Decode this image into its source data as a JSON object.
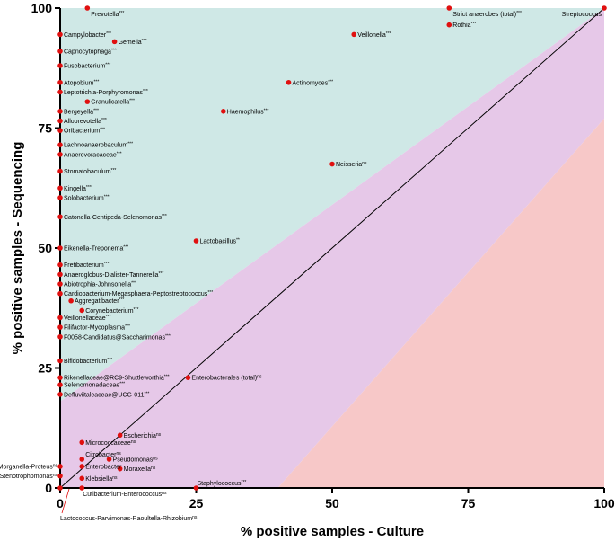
{
  "chart_data": {
    "type": "scatter",
    "xlabel": "% positive samples - Culture",
    "ylabel": "% positive samples - Sequencing",
    "xlim": [
      0,
      100
    ],
    "ylim": [
      0,
      100
    ],
    "xticks": [
      0,
      25,
      50,
      75,
      100
    ],
    "yticks": [
      0,
      25,
      50,
      75,
      100
    ],
    "grid": false,
    "diagonal_line": true,
    "region_colors": {
      "upper": "#cfe8e6",
      "middle": "#e6c8e8",
      "lower": "#f7c8c8"
    },
    "point_color": "#e01010",
    "points": [
      {
        "label": "Prevotella",
        "sig": "***",
        "x": 5,
        "y": 100
      },
      {
        "label": "Strict anaerobes (total)",
        "sig": "***",
        "x": 71.5,
        "y": 100
      },
      {
        "label": "Streptococcus",
        "sig": "",
        "x": 100,
        "y": 100
      },
      {
        "label": "Campylobacter",
        "sig": "***",
        "x": 0,
        "y": 94.5
      },
      {
        "label": "Gemella",
        "sig": "***",
        "x": 10,
        "y": 93
      },
      {
        "label": "Veillonella",
        "sig": "***",
        "x": 54,
        "y": 94.5
      },
      {
        "label": "Rothia",
        "sig": "***",
        "x": 71.5,
        "y": 96.5
      },
      {
        "label": "Capnocytophaga",
        "sig": "***",
        "x": 0,
        "y": 91
      },
      {
        "label": "Fusobacterium",
        "sig": "***",
        "x": 0,
        "y": 88
      },
      {
        "label": "Atopobium",
        "sig": "***",
        "x": 0,
        "y": 84.5
      },
      {
        "label": "Actinomyces",
        "sig": "***",
        "x": 42,
        "y": 84.5
      },
      {
        "label": "Leptotrichia-Porphyromonas",
        "sig": "***",
        "x": 0,
        "y": 82.5
      },
      {
        "label": "Granulicatella",
        "sig": "***",
        "x": 5,
        "y": 80.5
      },
      {
        "label": "Bergeyella",
        "sig": "***",
        "x": 0,
        "y": 78.5
      },
      {
        "label": "Haemophilus",
        "sig": "***",
        "x": 30,
        "y": 78.5
      },
      {
        "label": "Alloprevotella",
        "sig": "***",
        "x": 0,
        "y": 76.5
      },
      {
        "label": "Oribacterium",
        "sig": "***",
        "x": 0,
        "y": 74.5
      },
      {
        "label": "Lachnoanaerobaculum",
        "sig": "***",
        "x": 0,
        "y": 71.5
      },
      {
        "label": "Anaerovoracaceae",
        "sig": "***",
        "x": 0,
        "y": 69.5
      },
      {
        "label": "Neisseria",
        "sig": "ns",
        "x": 50,
        "y": 67.5
      },
      {
        "label": "Stomatobaculum",
        "sig": "***",
        "x": 0,
        "y": 66
      },
      {
        "label": "Kingella",
        "sig": "***",
        "x": 0,
        "y": 62.5
      },
      {
        "label": "Solobacterium",
        "sig": "***",
        "x": 0,
        "y": 60.5
      },
      {
        "label": "Catonella-Centipeda-Selenomonas",
        "sig": "***",
        "x": 0,
        "y": 56.5
      },
      {
        "label": "Lactobacillus",
        "sig": "**",
        "x": 25,
        "y": 51.5
      },
      {
        "label": "Eikenella-Treponema",
        "sig": "***",
        "x": 0,
        "y": 50
      },
      {
        "label": "Fretibacterium",
        "sig": "***",
        "x": 0,
        "y": 46.5
      },
      {
        "label": "Anaeroglobus-Dialister-Tannerella",
        "sig": "***",
        "x": 0,
        "y": 44.5
      },
      {
        "label": "Abiotrophia-Johnsonella",
        "sig": "***",
        "x": 0,
        "y": 42.5
      },
      {
        "label": "Cardiobacterium-Megasphaera-Peptostreptococcus",
        "sig": "***",
        "x": 0,
        "y": 40.5
      },
      {
        "label": "Aggregatibacter",
        "sig": "***",
        "x": 2,
        "y": 39
      },
      {
        "label": "Corynebacterium",
        "sig": "***",
        "x": 4,
        "y": 37
      },
      {
        "label": "Veillonellaceae",
        "sig": "***",
        "x": 0,
        "y": 35.5
      },
      {
        "label": "Filifactor-Mycoplasma",
        "sig": "***",
        "x": 0,
        "y": 33.5
      },
      {
        "label": "F0058-Candidatus@Saccharimonas",
        "sig": "***",
        "x": 0,
        "y": 31.5
      },
      {
        "label": "Bifidobacterium",
        "sig": "***",
        "x": 0,
        "y": 26.5
      },
      {
        "label": "Rikenellaceae@RC9-Shuttleworthia",
        "sig": "***",
        "x": 0,
        "y": 23
      },
      {
        "label": "Enterobacterales (total)",
        "sig": "ns",
        "x": 23.5,
        "y": 23
      },
      {
        "label": "Selenomonadaceae",
        "sig": "***",
        "x": 0,
        "y": 21.5
      },
      {
        "label": "Defluviitaleaceae@UCG-011",
        "sig": "***",
        "x": 0,
        "y": 19.5
      },
      {
        "label": "Escherichia",
        "sig": "ns",
        "x": 11,
        "y": 11
      },
      {
        "label": "Micrococcaceae",
        "sig": "ns",
        "x": 4,
        "y": 9.5
      },
      {
        "label": "Citrobacter",
        "sig": "ns",
        "x": 4,
        "y": 6
      },
      {
        "label": "Pseudomonas",
        "sig": "ns",
        "x": 9,
        "y": 6
      },
      {
        "label": "Hafnia-Morganella-Proteus",
        "sig": "ns",
        "x": 0,
        "y": 4.5
      },
      {
        "label": "Enterobacter",
        "sig": "",
        "x": 4,
        "y": 4.5
      },
      {
        "label": "Moraxella",
        "sig": "ns",
        "x": 11,
        "y": 4
      },
      {
        "label": "Stenotrophomonas",
        "sig": "ns",
        "x": 0,
        "y": 2.5
      },
      {
        "label": "Klebsiella",
        "sig": "ns",
        "x": 4,
        "y": 2
      },
      {
        "label": "Staphylococcus",
        "sig": "***",
        "x": 25,
        "y": 0
      },
      {
        "label": "Cutibacterium-Enterococcus",
        "sig": "ns",
        "x": 4,
        "y": 0
      },
      {
        "label": "Lactococcus-Parvimonas-Raoultella-Rhizobium",
        "sig": "ns",
        "x": 0,
        "y": 0
      }
    ]
  }
}
